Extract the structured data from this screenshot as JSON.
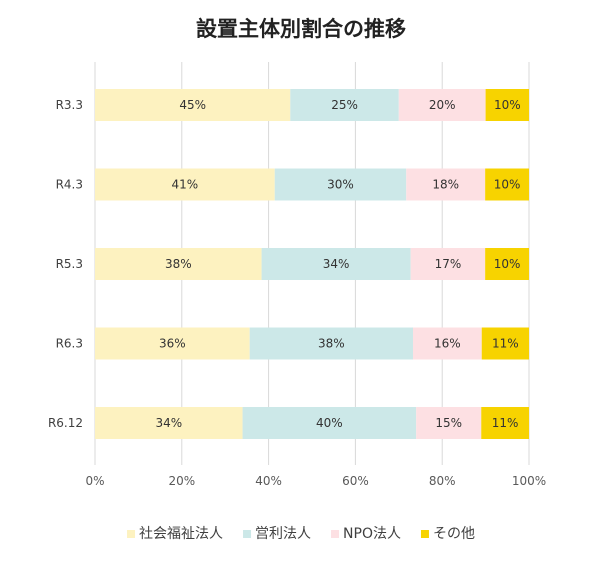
{
  "chart_data": {
    "type": "bar",
    "orientation": "horizontal",
    "stacked": "percent",
    "title": "設置主体別割合の推移",
    "categories": [
      "R3.3",
      "R4.3",
      "R5.3",
      "R6.3",
      "R6.12"
    ],
    "series": [
      {
        "name": "社会福祉法人",
        "color": "#fdf2c0",
        "values": [
          45,
          41,
          38,
          36,
          34
        ]
      },
      {
        "name": "営利法人",
        "color": "#cce8e8",
        "values": [
          25,
          30,
          34,
          38,
          40
        ]
      },
      {
        "name": "NPO法人",
        "color": "#fde0e3",
        "values": [
          20,
          18,
          17,
          16,
          15
        ]
      },
      {
        "name": "その他",
        "color": "#f7d300",
        "values": [
          10,
          10,
          10,
          11,
          11
        ]
      }
    ],
    "data_labels": [
      [
        "45%",
        "25%",
        "20%",
        "10%"
      ],
      [
        "41%",
        "30%",
        "18%",
        "10%"
      ],
      [
        "38%",
        "34%",
        "17%",
        "10%"
      ],
      [
        "36%",
        "38%",
        "16%",
        "11%"
      ],
      [
        "34%",
        "40%",
        "15%",
        "11%"
      ]
    ],
    "x_ticks": [
      "0%",
      "20%",
      "40%",
      "60%",
      "80%",
      "100%"
    ],
    "xlim": [
      0,
      100
    ],
    "grid": "vertical",
    "legend_position": "bottom"
  }
}
